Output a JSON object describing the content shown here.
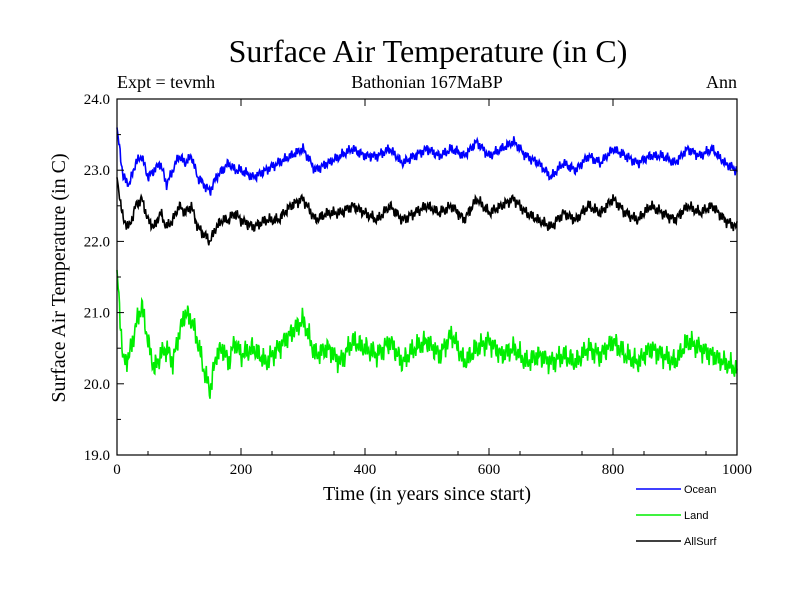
{
  "chart_data": {
    "type": "line",
    "title": "Surface Air Temperature (in C)",
    "subtitle_left": "Expt = tevmh",
    "subtitle_center": "Bathonian 167MaBP",
    "subtitle_right": "Ann",
    "xlabel": "Time (in years since start)",
    "ylabel": "Surface Air Temperature (in C)",
    "xlim": [
      0,
      1000
    ],
    "ylim": [
      19.0,
      24.0
    ],
    "xticks": [
      "0",
      "200",
      "400",
      "600",
      "800",
      "1000"
    ],
    "yticks": [
      "19.0",
      "20.0",
      "21.0",
      "22.0",
      "23.0",
      "24.0"
    ],
    "series": [
      {
        "name": "Ocean",
        "color": "#0000ff",
        "x": [
          0,
          10,
          20,
          30,
          40,
          50,
          60,
          70,
          80,
          90,
          100,
          110,
          120,
          130,
          140,
          150,
          160,
          170,
          180,
          190,
          200,
          220,
          240,
          260,
          280,
          300,
          320,
          340,
          360,
          380,
          400,
          420,
          440,
          460,
          480,
          500,
          520,
          540,
          560,
          580,
          600,
          620,
          640,
          660,
          680,
          700,
          720,
          740,
          760,
          780,
          800,
          820,
          840,
          860,
          880,
          900,
          920,
          940,
          960,
          980,
          1000
        ],
        "values": [
          23.6,
          22.9,
          22.8,
          23.1,
          23.2,
          22.9,
          23.0,
          23.1,
          22.8,
          23.0,
          23.2,
          23.1,
          23.2,
          22.9,
          22.8,
          22.7,
          22.9,
          23.0,
          23.1,
          23.0,
          23.0,
          22.9,
          23.0,
          23.1,
          23.2,
          23.3,
          23.0,
          23.1,
          23.2,
          23.3,
          23.2,
          23.2,
          23.3,
          23.1,
          23.2,
          23.3,
          23.2,
          23.3,
          23.2,
          23.4,
          23.2,
          23.3,
          23.4,
          23.2,
          23.1,
          22.9,
          23.1,
          23.0,
          23.2,
          23.1,
          23.3,
          23.2,
          23.1,
          23.2,
          23.2,
          23.1,
          23.3,
          23.2,
          23.3,
          23.1,
          23.0
        ]
      },
      {
        "name": "Land",
        "color": "#00ee00",
        "x": [
          0,
          10,
          20,
          30,
          40,
          50,
          60,
          70,
          80,
          90,
          100,
          110,
          120,
          130,
          140,
          150,
          160,
          170,
          180,
          190,
          200,
          220,
          240,
          260,
          280,
          300,
          320,
          340,
          360,
          380,
          400,
          420,
          440,
          460,
          480,
          500,
          520,
          540,
          560,
          580,
          600,
          620,
          640,
          660,
          680,
          700,
          720,
          740,
          760,
          780,
          800,
          820,
          840,
          860,
          880,
          900,
          920,
          940,
          960,
          980,
          1000
        ],
        "values": [
          21.6,
          20.3,
          20.4,
          20.8,
          21.1,
          20.6,
          20.2,
          20.4,
          20.5,
          20.3,
          20.7,
          21.0,
          20.9,
          20.6,
          20.2,
          19.9,
          20.4,
          20.5,
          20.3,
          20.6,
          20.4,
          20.5,
          20.3,
          20.5,
          20.7,
          20.9,
          20.4,
          20.5,
          20.3,
          20.6,
          20.5,
          20.4,
          20.6,
          20.3,
          20.5,
          20.6,
          20.4,
          20.7,
          20.3,
          20.5,
          20.6,
          20.4,
          20.5,
          20.3,
          20.4,
          20.3,
          20.4,
          20.3,
          20.5,
          20.4,
          20.6,
          20.4,
          20.3,
          20.5,
          20.4,
          20.3,
          20.6,
          20.5,
          20.4,
          20.3,
          20.2
        ]
      },
      {
        "name": "AllSurf",
        "color": "#000000",
        "x": [
          0,
          10,
          20,
          30,
          40,
          50,
          60,
          70,
          80,
          90,
          100,
          110,
          120,
          130,
          140,
          150,
          160,
          170,
          180,
          190,
          200,
          220,
          240,
          260,
          280,
          300,
          320,
          340,
          360,
          380,
          400,
          420,
          440,
          460,
          480,
          500,
          520,
          540,
          560,
          580,
          600,
          620,
          640,
          660,
          680,
          700,
          720,
          740,
          760,
          780,
          800,
          820,
          840,
          860,
          880,
          900,
          920,
          940,
          960,
          980,
          1000
        ],
        "values": [
          22.9,
          22.3,
          22.2,
          22.5,
          22.6,
          22.3,
          22.2,
          22.4,
          22.2,
          22.3,
          22.5,
          22.4,
          22.5,
          22.2,
          22.1,
          22.0,
          22.2,
          22.3,
          22.3,
          22.4,
          22.3,
          22.2,
          22.3,
          22.3,
          22.5,
          22.6,
          22.3,
          22.4,
          22.4,
          22.5,
          22.4,
          22.3,
          22.5,
          22.3,
          22.4,
          22.5,
          22.4,
          22.5,
          22.3,
          22.6,
          22.4,
          22.5,
          22.6,
          22.4,
          22.3,
          22.2,
          22.4,
          22.3,
          22.5,
          22.4,
          22.6,
          22.4,
          22.3,
          22.5,
          22.4,
          22.3,
          22.5,
          22.4,
          22.5,
          22.3,
          22.2
        ]
      }
    ],
    "legend_position": "bottom-right"
  }
}
